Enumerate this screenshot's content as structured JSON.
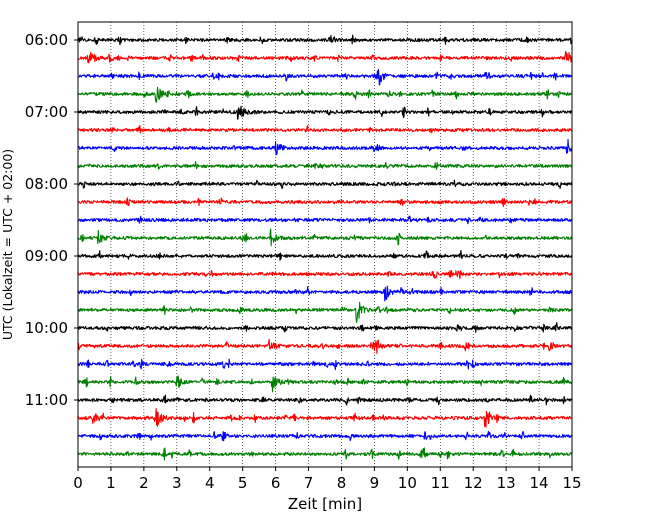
{
  "chart_data": {
    "type": "line",
    "title": "",
    "xlabel": "Zeit  [min]",
    "ylabel": "UTC (Lokalzeit = UTC + 02:00)",
    "xlim": [
      0,
      15
    ],
    "x_ticks": [
      0,
      1,
      2,
      3,
      4,
      5,
      6,
      7,
      8,
      9,
      10,
      11,
      12,
      13,
      14,
      15
    ],
    "x_tick_labels": [
      "0",
      "1",
      "2",
      "3",
      "4",
      "5",
      "6",
      "7",
      "8",
      "9",
      "10",
      "11",
      "12",
      "13",
      "14",
      "15"
    ],
    "y_ticks": [
      {
        "label": "06:00",
        "trace": 0
      },
      {
        "label": "07:00",
        "trace": 4
      },
      {
        "label": "08:00",
        "trace": 8
      },
      {
        "label": "09:00",
        "trace": 12
      },
      {
        "label": "10:00",
        "trace": 16
      },
      {
        "label": "11:00",
        "trace": 20
      }
    ],
    "grid": "x (dotted vertical)",
    "trace_colors": [
      "#000000",
      "#ff0000",
      "#0000ff",
      "#008000"
    ],
    "trace_interval_minutes": 15,
    "trace_count": 24,
    "events": [
      {
        "trace": 1,
        "minutes": [
          0.3,
          14.8
        ],
        "amps": [
          0.7,
          0.6
        ]
      },
      {
        "trace": 2,
        "minutes": [
          9.05
        ],
        "amps": [
          1.0
        ]
      },
      {
        "trace": 3,
        "minutes": [
          2.35
        ],
        "amps": [
          0.8
        ]
      },
      {
        "trace": 4,
        "minutes": [
          4.85
        ],
        "amps": [
          0.7
        ]
      },
      {
        "trace": 6,
        "minutes": [
          6.0,
          14.85
        ],
        "amps": [
          0.5,
          0.8
        ]
      },
      {
        "trace": 11,
        "minutes": [
          0.6,
          5.85
        ],
        "amps": [
          0.5,
          0.5
        ]
      },
      {
        "trace": 14,
        "minutes": [
          9.3
        ],
        "amps": [
          0.6
        ]
      },
      {
        "trace": 15,
        "minutes": [
          8.45
        ],
        "amps": [
          1.0
        ]
      },
      {
        "trace": 17,
        "minutes": [
          5.8,
          8.95,
          14.3
        ],
        "amps": [
          0.4,
          0.4,
          0.3
        ]
      },
      {
        "trace": 19,
        "minutes": [
          3.0,
          5.9
        ],
        "amps": [
          0.4,
          0.6
        ]
      },
      {
        "trace": 21,
        "minutes": [
          0.45,
          2.35,
          12.35
        ],
        "amps": [
          0.4,
          0.8,
          0.7
        ]
      },
      {
        "trace": 23,
        "minutes": [
          10.4
        ],
        "amps": [
          0.3
        ]
      }
    ]
  }
}
